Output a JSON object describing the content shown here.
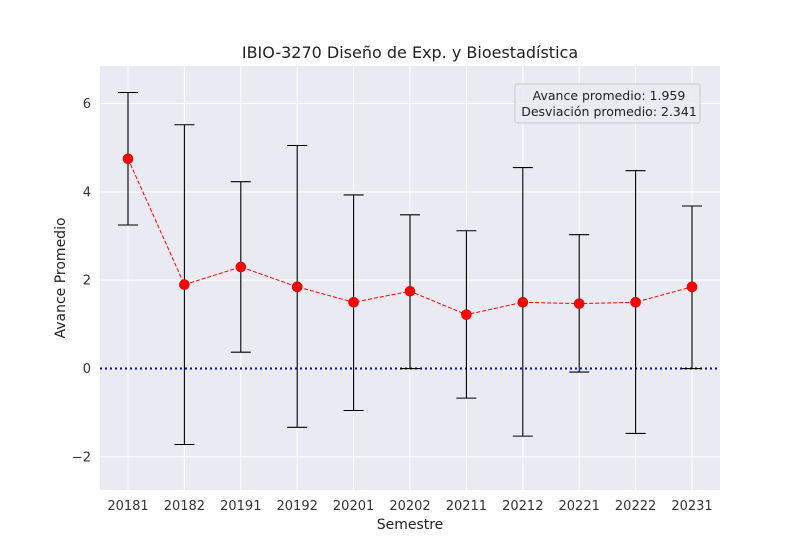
{
  "chart_data": {
    "type": "line",
    "title": "IBIO-3270 Diseño de Exp. y Bioestadística",
    "xlabel": "Semestre",
    "ylabel": "Avance Promedio",
    "categories": [
      "20181",
      "20182",
      "20191",
      "20192",
      "20201",
      "20202",
      "20211",
      "20212",
      "20221",
      "20222",
      "20231"
    ],
    "series": [
      {
        "values": [
          4.75,
          1.9,
          2.3,
          1.85,
          1.5,
          1.75,
          1.22,
          1.5,
          1.47,
          1.5,
          1.85
        ],
        "err_low": [
          3.25,
          -1.72,
          0.37,
          -1.33,
          -0.95,
          0.0,
          -0.67,
          -1.53,
          -0.08,
          -1.47,
          0.0
        ],
        "err_high": [
          6.25,
          5.52,
          4.23,
          5.05,
          3.93,
          3.48,
          3.12,
          4.55,
          3.03,
          4.48,
          3.68
        ],
        "color": "#ff0000",
        "line_style": "dashed",
        "marker": "circle"
      }
    ],
    "reference_line": {
      "y": 0,
      "color": "#0000cc",
      "style": "dotted"
    },
    "ylim": [
      -2.75,
      6.85
    ],
    "yticks": [
      -2,
      0,
      2,
      4,
      6
    ],
    "ytick_labels": [
      "−2",
      "0",
      "2",
      "4",
      "6"
    ],
    "grid": true,
    "annotation": {
      "lines": [
        "Avance promedio: 1.959",
        "Desviación promedio: 2.341"
      ],
      "placement": "top-right"
    },
    "colors": {
      "plot_background": "#eaeaf2",
      "grid": "#ffffff",
      "errorbar": "#000000"
    }
  }
}
